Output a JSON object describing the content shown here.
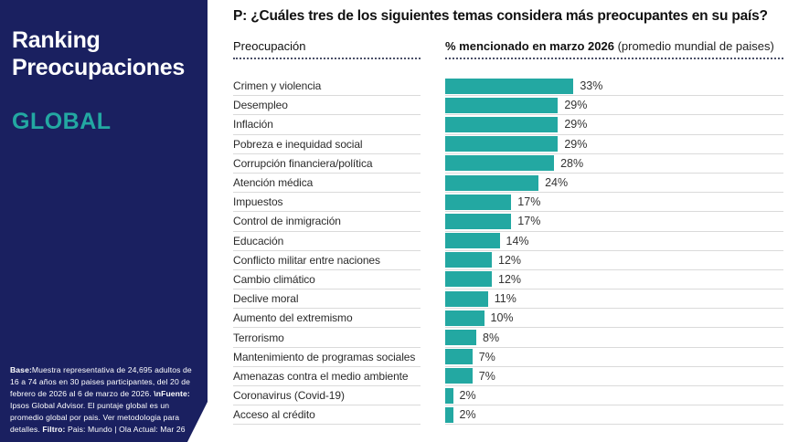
{
  "colors": {
    "navy": "#1A2060",
    "teal": "#23A8A2",
    "separator": "#dadada"
  },
  "sidebar": {
    "title_line1": "Ranking",
    "title_line2": "Preocupaciones",
    "subtitle": "GLOBAL",
    "footnote_segments": [
      {
        "text": "Base:",
        "bold": true
      },
      {
        "text": "Muestra representativa de 24,695 adultos de 16 a 74 años en 30 paises participantes, del 20 de febrero de 2026 al 6 de marzo de 2026. ",
        "bold": false
      },
      {
        "text": "\\nFuente:",
        "bold": true
      },
      {
        "text": " Ipsos Global Advisor. El puntaje global es un promedio global por pais. Ver metodologia para detalles. ",
        "bold": false
      },
      {
        "text": "Filtro:",
        "bold": true
      },
      {
        "text": " Pais: Mundo | Ola Actual: Mar 26",
        "bold": false
      }
    ]
  },
  "header": {
    "question": "P: ¿Cuáles tres de los siguientes temas considera más preocupantes en su país?",
    "col1": "Preocupación",
    "col2_bold": "% mencionado en marzo 2026",
    "col2_regular": " (promedio mundial de paises)"
  },
  "chart_data": {
    "type": "bar",
    "orientation": "horizontal",
    "title": "P: ¿Cuáles tres de los siguientes temas considera más preocupantes en su país?",
    "xlabel": "% mencionado en marzo 2026 (promedio mundial de paises)",
    "ylabel": "Preocupación",
    "categories": [
      "Crimen y violencia",
      "Desempleo",
      "Inflación",
      "Pobreza e inequidad social",
      "Corrupción financiera/política",
      "Atención médica",
      "Impuestos",
      "Control de inmigración",
      "Educación",
      "Conflicto militar entre naciones",
      "Cambio climático",
      "Declive moral",
      "Aumento del extremismo",
      "Terrorismo",
      "Mantenimiento de programas sociales",
      "Amenazas contra el medio ambiente",
      "Coronavirus (Covid-19)",
      "Acceso al crédito"
    ],
    "values": [
      33,
      29,
      29,
      29,
      28,
      24,
      17,
      17,
      14,
      12,
      12,
      11,
      10,
      8,
      7,
      7,
      2,
      2
    ],
    "value_suffix": "%",
    "xlim": [
      0,
      87
    ],
    "grid": false,
    "legend": false,
    "bar_color": "#23A8A2"
  }
}
